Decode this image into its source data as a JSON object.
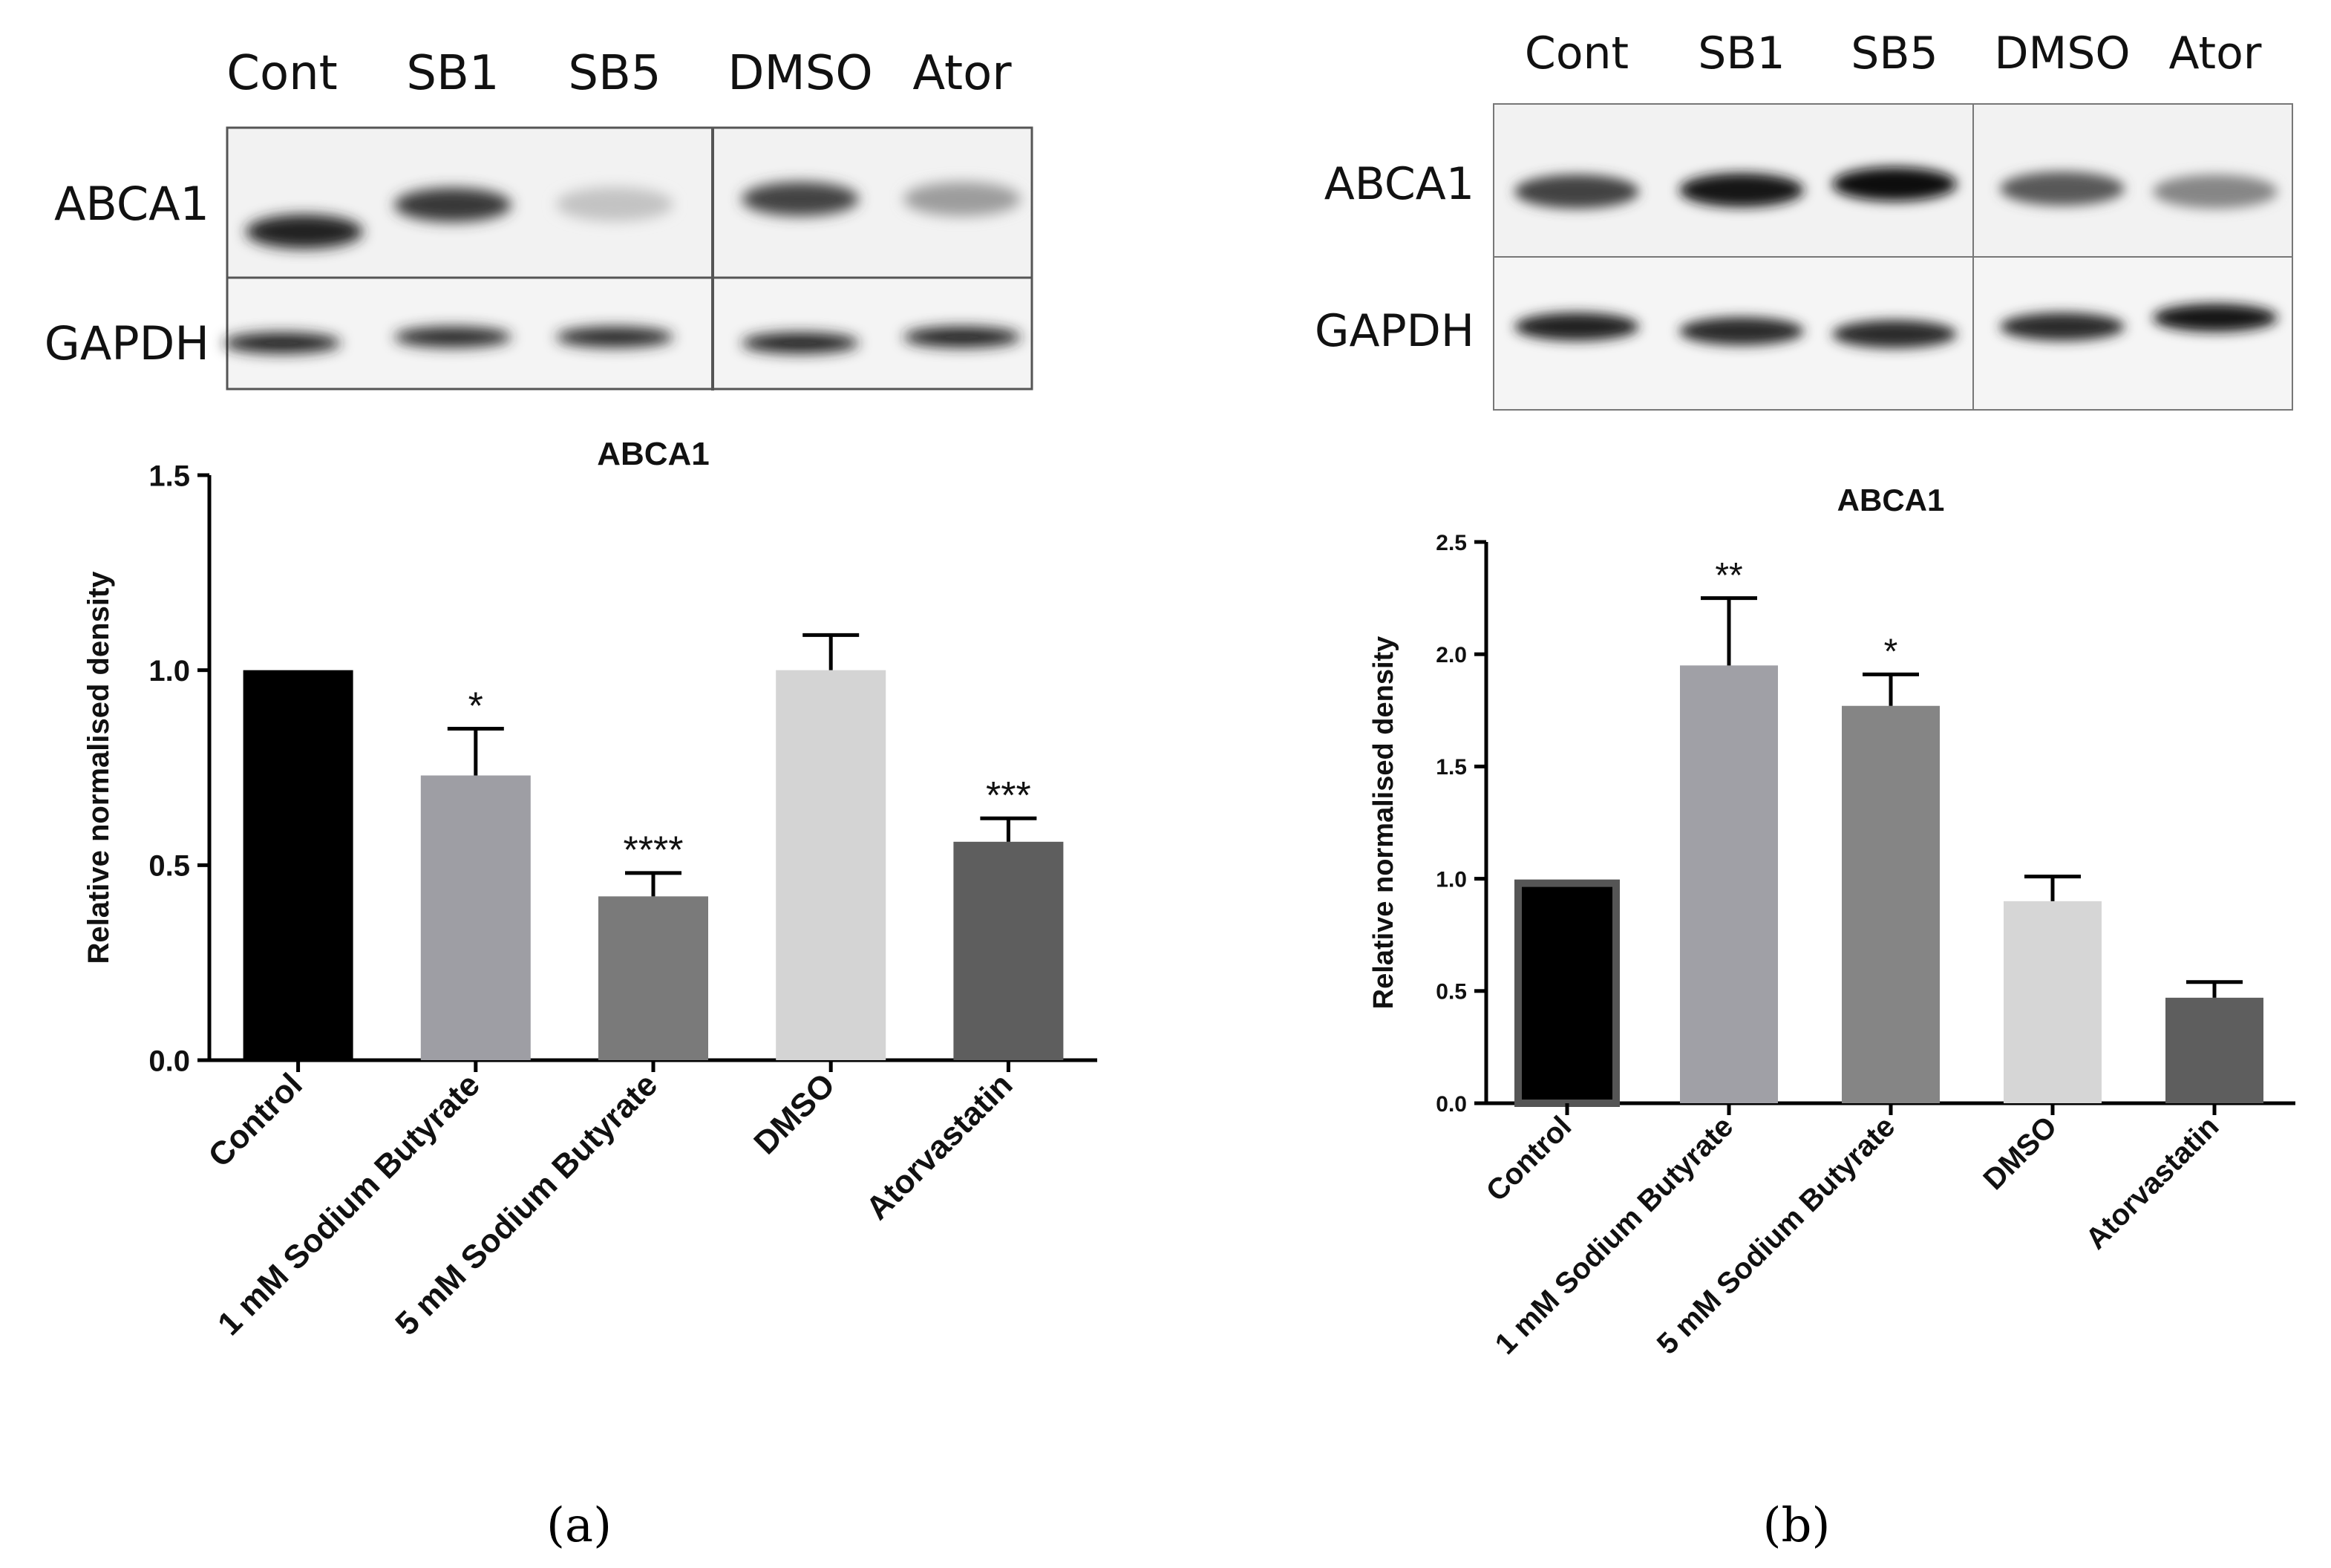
{
  "panels": [
    {
      "id": "a",
      "panel_label": "(a)",
      "blot": {
        "lanes": [
          "Cont",
          "SB1",
          "SB5",
          "DMSO",
          "Ator"
        ],
        "rows": [
          "ABCA1",
          "GAPDH"
        ],
        "band_intensity": {
          "ABCA1": [
            0.9,
            0.8,
            0.18,
            0.75,
            0.35
          ],
          "GAPDH": [
            0.9,
            0.85,
            0.85,
            0.9,
            0.9
          ]
        }
      },
      "chart_data": {
        "type": "bar",
        "title": "ABCA1",
        "ylabel": "Relative normalised density",
        "xlabel": "",
        "categories": [
          "Control",
          "1 mM Sodium Butyrate",
          "5 mM Sodium Butyrate",
          "DMSO",
          "Atorvastatin"
        ],
        "values": [
          1.0,
          0.73,
          0.42,
          1.0,
          0.56
        ],
        "errors": [
          0.0,
          0.12,
          0.06,
          0.09,
          0.06
        ],
        "significance": [
          "",
          "*",
          "****",
          "",
          "***"
        ],
        "colors": [
          "#000000",
          "#9e9ea4",
          "#7a7a7a",
          "#d4d4d4",
          "#5e5e5e"
        ],
        "ylim": [
          0,
          1.5
        ],
        "yticks": [
          "0.0",
          "0.5",
          "1.0",
          "1.5"
        ],
        "ytick_values": [
          0,
          0.5,
          1.0,
          1.5
        ]
      }
    },
    {
      "id": "b",
      "panel_label": "(b)",
      "blot": {
        "lanes": [
          "Cont",
          "SB1",
          "SB5",
          "DMSO",
          "Ator"
        ],
        "rows": [
          "ABCA1",
          "GAPDH"
        ],
        "band_intensity": {
          "ABCA1": [
            0.75,
            0.95,
            1.0,
            0.65,
            0.45
          ],
          "GAPDH": [
            0.9,
            0.85,
            0.85,
            0.85,
            0.95
          ]
        }
      },
      "chart_data": {
        "type": "bar",
        "title": "ABCA1",
        "ylabel": "Relative normalised density",
        "xlabel": "",
        "categories": [
          "Control",
          "1 mM Sodium Butyrate",
          "5 mM Sodium Butyrate",
          "DMSO",
          "Atorvastatin"
        ],
        "values": [
          0.98,
          1.95,
          1.77,
          0.9,
          0.47
        ],
        "errors": [
          0.0,
          0.3,
          0.14,
          0.11,
          0.07
        ],
        "significance": [
          "",
          "**",
          "*",
          "",
          ""
        ],
        "colors": [
          "#000000",
          "#a0a0a6",
          "#858585",
          "#d6d6d6",
          "#5e5e5e"
        ],
        "ylim": [
          0,
          2.5
        ],
        "yticks": [
          "0.0",
          "0.5",
          "1.0",
          "1.5",
          "2.0",
          "2.5"
        ],
        "ytick_values": [
          0,
          0.5,
          1.0,
          1.5,
          2.0,
          2.5
        ]
      }
    }
  ]
}
